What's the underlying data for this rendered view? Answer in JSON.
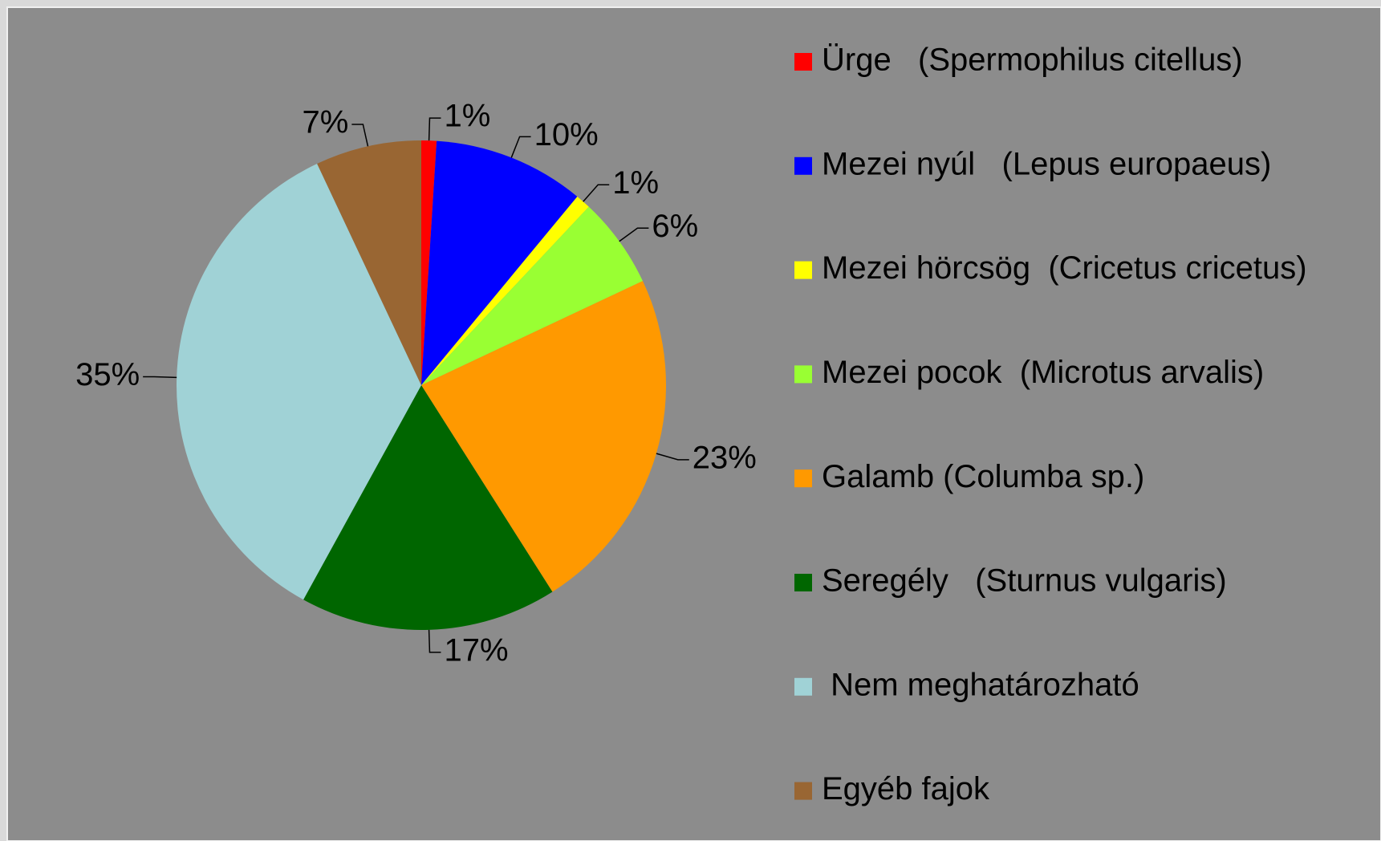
{
  "chart_data": {
    "type": "pie",
    "categories": [
      "Ürge   (Spermophilus citellus)",
      "Mezei nyúl   (Lepus europaeus)",
      "Mezei hörcsög  (Cricetus cricetus)",
      "Mezei pocok  (Microtus arvalis)",
      "Galamb (Columba sp.)",
      "Seregély   (Sturnus vulgaris)",
      " Nem meghatározható",
      "Egyéb fajok"
    ],
    "values": [
      1,
      10,
      1,
      6,
      23,
      17,
      35,
      7
    ],
    "value_labels": [
      "1%",
      "10%",
      "1%",
      "6%",
      "23%",
      "17%",
      "35%",
      "7%"
    ],
    "colors": [
      "#ff0000",
      "#0000ff",
      "#ffff00",
      "#99ff33",
      "#ff9900",
      "#006600",
      "#a0d2d6",
      "#996633"
    ],
    "legend": "right"
  }
}
